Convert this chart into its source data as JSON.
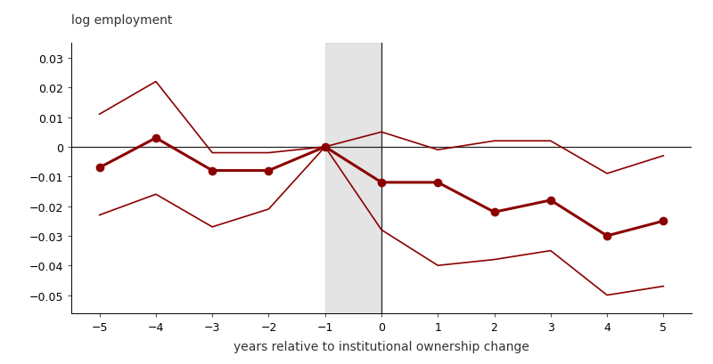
{
  "x": [
    -5,
    -4,
    -3,
    -2,
    -1,
    0,
    1,
    2,
    3,
    4,
    5
  ],
  "point_estimates": [
    -0.007,
    0.003,
    -0.008,
    -0.008,
    0.0,
    -0.012,
    -0.012,
    -0.022,
    -0.018,
    -0.03,
    -0.025
  ],
  "upper_ci": [
    0.011,
    0.022,
    -0.002,
    -0.002,
    0.0,
    0.005,
    -0.001,
    0.002,
    0.002,
    -0.009,
    -0.003
  ],
  "lower_ci": [
    -0.023,
    -0.016,
    -0.027,
    -0.021,
    0.0,
    -0.028,
    -0.04,
    -0.038,
    -0.035,
    -0.05,
    -0.047
  ],
  "ylabel": "log employment",
  "xlabel": "years relative to institutional ownership change",
  "ylim": [
    -0.056,
    0.035
  ],
  "yticks": [
    -0.05,
    -0.04,
    -0.03,
    -0.02,
    -0.01,
    0.0,
    0.01,
    0.02,
    0.03
  ],
  "xticks": [
    -5,
    -4,
    -3,
    -2,
    -1,
    0,
    1,
    2,
    3,
    4,
    5
  ],
  "line_color": "#8B0000",
  "shade_color": "#D3D3D3",
  "shade_alpha": 0.6,
  "zero_line_color": "#222222",
  "vline_color": "#222222",
  "point_linewidth": 2.2,
  "ci_linewidth": 1.2,
  "marker_size": 6,
  "figsize": [
    8.0,
    4.1
  ],
  "dpi": 100
}
